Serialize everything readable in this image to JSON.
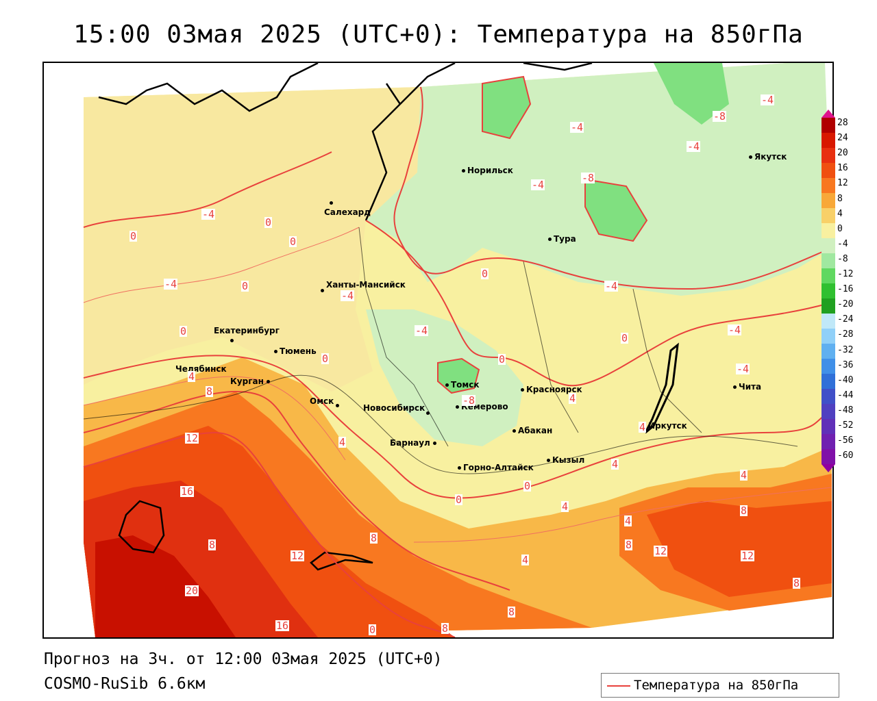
{
  "title": "15:00 03мая 2025 (UTC+0): Температура на 850гПа",
  "footer": {
    "line1": "Прогноз на 3ч. от 12:00 03мая 2025 (UTC+0)",
    "line2": "COSMO-RuSib 6.6км"
  },
  "legend": {
    "label": "Температура на 850гПа",
    "line_color": "#e8413c"
  },
  "colorbar": {
    "labels": [
      "28",
      "24",
      "20",
      "16",
      "12",
      "8",
      "4",
      "0",
      "-4",
      "-8",
      "-12",
      "-16",
      "-20",
      "-24",
      "-28",
      "-32",
      "-36",
      "-40",
      "-44",
      "-48",
      "-52",
      "-56",
      "-60"
    ],
    "colors": [
      "#e0148c",
      "#b00000",
      "#d81800",
      "#e83010",
      "#f05010",
      "#f87820",
      "#f8a838",
      "#f8d068",
      "#f8f0a0",
      "#d0f0c0",
      "#a0e8a0",
      "#60d860",
      "#30c030",
      "#20a020",
      "#c0e8f8",
      "#90d0f8",
      "#60b0f0",
      "#4090e8",
      "#3070d8",
      "#4050c8",
      "#5040c0",
      "#6030b8",
      "#7020b0",
      "#8010a8",
      "#9000a0"
    ]
  },
  "cities": [
    {
      "name": "Норильск"
    },
    {
      "name": "Якутск"
    },
    {
      "name": "Салехард"
    },
    {
      "name": "Тура"
    },
    {
      "name": "Ханты-Мансийск"
    },
    {
      "name": "Екатеринбург"
    },
    {
      "name": "Тюмень"
    },
    {
      "name": "Челябинск"
    },
    {
      "name": "Курган"
    },
    {
      "name": "Омск"
    },
    {
      "name": "Новосибирск"
    },
    {
      "name": "Томск"
    },
    {
      "name": "Кемерово"
    },
    {
      "name": "Красноярск"
    },
    {
      "name": "Барнаул"
    },
    {
      "name": "Абакан"
    },
    {
      "name": "Кызыл"
    },
    {
      "name": "Горно-Алтайск"
    },
    {
      "name": "Иркутск"
    },
    {
      "name": "Чита"
    }
  ],
  "isotherm_labels": [
    "-8",
    "-4",
    "-4",
    "-4",
    "-8",
    "-4",
    "-4",
    "-4",
    "-4",
    "0",
    "0",
    "-4",
    "0",
    "-4",
    "0",
    "0",
    "-4",
    "0",
    "0",
    "0",
    "-4",
    "-8",
    "0",
    "4",
    "8",
    "4",
    "12",
    "4",
    "4",
    "4",
    "16",
    "8",
    "4",
    "4",
    "4",
    "8",
    "12",
    "12",
    "8",
    "8",
    "20",
    "16",
    "12",
    "8",
    "8",
    "0",
    "0",
    "0",
    "4",
    "8"
  ]
}
